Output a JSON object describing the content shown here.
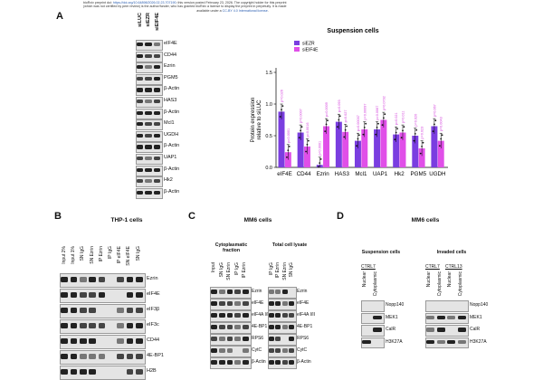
{
  "header": {
    "line1_pre": "bioRxiv preprint doi: ",
    "doi": "https://doi.org/10.64898/2026.02.23.707190",
    "line1_post": "; this version posted February 23, 2026. The copyright holder for this preprint",
    "line2": "(which was not certified by peer review) is the author/funder, who has granted bioRxiv a license to display the preprint in perpetuity. It is made",
    "line3_pre": "available under a",
    "license": "CC-BY 4.0 International license",
    "line3_post": "."
  },
  "panelA": {
    "letter": "A",
    "lanes": [
      "siLUC",
      "siEZR",
      "siEIF4E"
    ],
    "rows": [
      "eIF4E",
      "CD44",
      "Ezrin",
      "PGM5",
      "β-Actin",
      "HAS3",
      "β-Actin",
      "Mcl1",
      "UGDH",
      "β-Actin",
      "UAP1",
      "β-Actin",
      "Hk2",
      "β-Actin"
    ]
  },
  "chart_data": {
    "type": "bar",
    "title": "Suspension cells",
    "ylabel": "Protein expression relative to siLUC",
    "ylim": [
      0,
      1.5
    ],
    "yticks": [
      "0.0",
      "0.5",
      "1.0",
      "1.5"
    ],
    "categories": [
      "eIF4E",
      "CD44",
      "Ezrin",
      "HAS3",
      "Mcl1",
      "UAP1",
      "Hk2",
      "PGM5",
      "UGDH"
    ],
    "series": [
      {
        "name": "siEZR",
        "color": "#7a3ee0",
        "values": [
          0.88,
          0.55,
          0.04,
          0.72,
          0.42,
          0.6,
          0.52,
          0.5,
          0.65
        ]
      },
      {
        "name": "siEIF4E",
        "color": "#e04fe8",
        "values": [
          0.24,
          0.33,
          0.65,
          0.56,
          0.6,
          0.75,
          0.55,
          0.3,
          0.42
        ]
      }
    ],
    "pvalues": [
      [
        "p=0.026",
        "p=0.0001"
      ],
      [
        "p=0.0007",
        "p=0.0016"
      ],
      [
        "p<0.0001",
        "p=0.0009"
      ],
      [
        "p=0.093",
        "p=0.027"
      ],
      [
        "p=0.00037",
        "p=0.00097"
      ],
      [
        "p=0.0067",
        "p=0.0792"
      ],
      [
        "p=0.021",
        "p=0.011"
      ],
      [
        "p=0.020",
        "p=0.023"
      ],
      [
        "p=0.067",
        "p=0.0043"
      ]
    ]
  },
  "panelB": {
    "letter": "B",
    "title": "THP-1 cells",
    "lanes": [
      "Input 2%",
      "Input 1%",
      "SN IgG",
      "SN Ezrin",
      "IP Ezrin",
      "IP IgG",
      "IP eIF4E",
      "SN eIF4E",
      "SN IgG"
    ],
    "rows": [
      "Ezrin",
      "eIF4E",
      "eIF3β",
      "eIF3c",
      "CD44",
      "4E-BP1",
      "H2B"
    ]
  },
  "panelC": {
    "letter": "C",
    "title": "MM6 cells",
    "left": {
      "subtitle": "Cytoplasmatic fraction",
      "lanes": [
        "Input",
        "SN IgG",
        "SN Ezrin",
        "IP IgG",
        "IP Ezrin"
      ],
      "rows": [
        "Ezrin",
        "eIF4E",
        "eIF4A I/II",
        "4E-BP1",
        "RPS6",
        "CytC",
        "β-Actin"
      ]
    },
    "right": {
      "subtitle": "Total cell lysate",
      "lanes": [
        "IP IgG",
        "IP Ezrin",
        "SN Ezrin",
        "SN IgG"
      ],
      "rows": [
        "Ezrin",
        "eIF4E",
        "eIF4A I/II",
        "4E-BP1",
        "RPS6",
        "CytC",
        "β-Actin"
      ]
    }
  },
  "panelD": {
    "letter": "D",
    "title": "MM6 cells",
    "left": {
      "subtitle": "Suspension cells",
      "group": "CTRL7",
      "lanes": [
        "Nuclear",
        "Cytoplasmic"
      ],
      "rows": [
        "Nopp140",
        "MEK1",
        "CalR",
        "H3K27A"
      ]
    },
    "right": {
      "subtitle": "Invaded cells",
      "groups": [
        "CTRL7",
        "CTRL13"
      ],
      "lanes": [
        "Nuclear",
        "Cytoplasmic",
        "Nuclear",
        "Cytoplasmic"
      ],
      "rows": [
        "Nopp140",
        "MEK1",
        "CalR",
        "H3K27A"
      ]
    }
  }
}
